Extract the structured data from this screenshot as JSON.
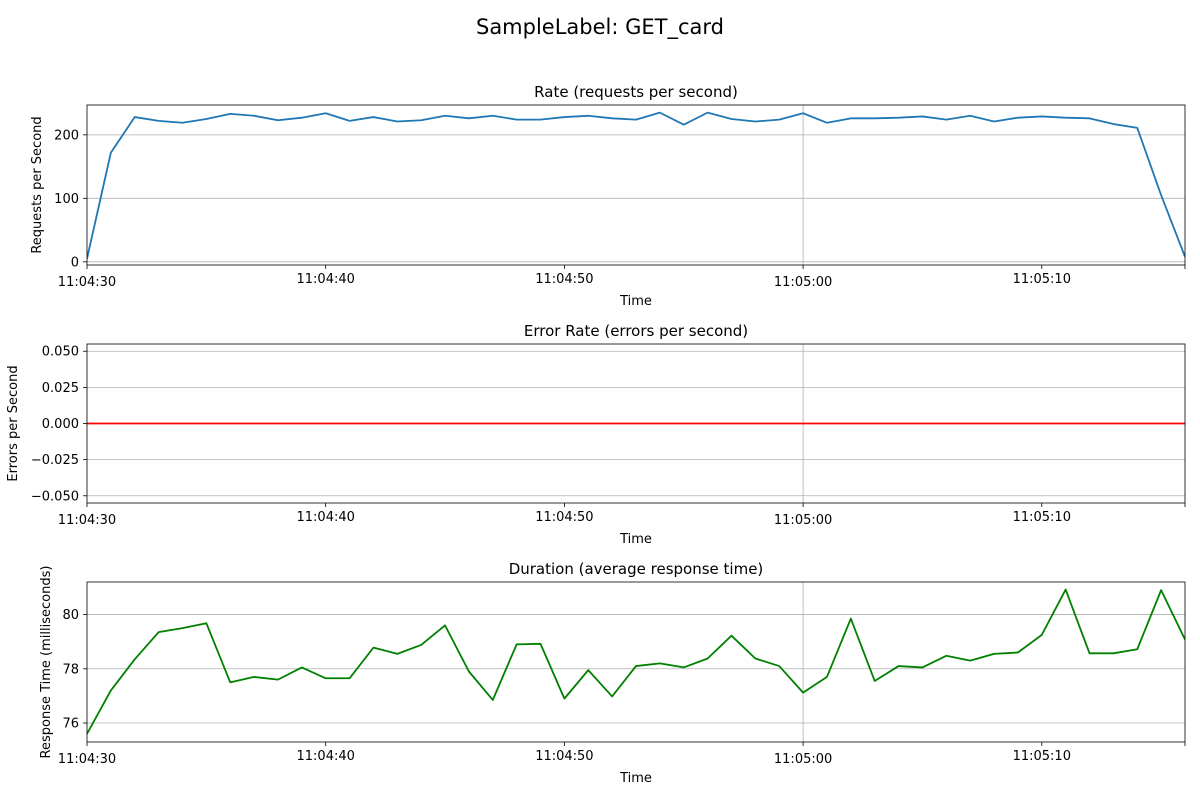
{
  "suptitle": "SampleLabel: GET_card",
  "chart_data": [
    {
      "type": "line",
      "title": "Rate (requests per second)",
      "xlabel": "Time",
      "ylabel": "Requests per Second",
      "x_ticks": [
        "11:04:30",
        "11:04:40",
        "11:04:50",
        "11:05:00",
        "11:05:10"
      ],
      "y_ticks": [
        "0",
        "100",
        "200"
      ],
      "xlim": [
        0,
        46
      ],
      "ylim": [
        -5,
        247
      ],
      "grid": true,
      "color": "#1f77b4",
      "x_start": "11:04:30",
      "x_step_seconds": 1,
      "values": [
        5,
        172,
        228,
        222,
        219,
        225,
        233,
        230,
        223,
        227,
        234,
        222,
        228,
        221,
        223,
        230,
        226,
        230,
        224,
        224,
        228,
        230,
        226,
        224,
        235,
        216,
        235,
        225,
        221,
        224,
        234,
        219,
        226,
        226,
        227,
        229,
        224,
        230,
        221,
        227,
        229,
        227,
        226,
        217,
        211,
        105,
        8
      ]
    },
    {
      "type": "line",
      "title": "Error Rate (errors per second)",
      "xlabel": "Time",
      "ylabel": "Errors per Second",
      "x_ticks": [
        "11:04:30",
        "11:04:40",
        "11:04:50",
        "11:05:00",
        "11:05:10"
      ],
      "y_ticks": [
        "−0.050",
        "−0.025",
        "0.000",
        "0.025",
        "0.050"
      ],
      "xlim": [
        0,
        46
      ],
      "ylim": [
        -0.055,
        0.055
      ],
      "grid": true,
      "color": "#ff0000",
      "x_start": "11:04:30",
      "x_step_seconds": 1,
      "values": [
        0,
        0,
        0,
        0,
        0,
        0,
        0,
        0,
        0,
        0,
        0,
        0,
        0,
        0,
        0,
        0,
        0,
        0,
        0,
        0,
        0,
        0,
        0,
        0,
        0,
        0,
        0,
        0,
        0,
        0,
        0,
        0,
        0,
        0,
        0,
        0,
        0,
        0,
        0,
        0,
        0,
        0,
        0,
        0,
        0,
        0,
        0
      ]
    },
    {
      "type": "line",
      "title": "Duration (average response time)",
      "xlabel": "Time",
      "ylabel": "Response Time (milliseconds)",
      "x_ticks": [
        "11:04:30",
        "11:04:40",
        "11:04:50",
        "11:05:00",
        "11:05:10"
      ],
      "y_ticks": [
        "76",
        "78",
        "80"
      ],
      "xlim": [
        0,
        46
      ],
      "ylim": [
        75.3,
        81.2
      ],
      "grid": true,
      "color": "#008000",
      "x_start": "11:04:30",
      "x_step_seconds": 1,
      "values": [
        75.6,
        77.2,
        78.35,
        79.35,
        79.5,
        79.68,
        77.5,
        77.7,
        77.6,
        78.05,
        77.65,
        77.65,
        78.78,
        78.55,
        78.88,
        79.6,
        77.9,
        76.85,
        78.9,
        78.92,
        76.9,
        77.95,
        76.98,
        78.1,
        78.2,
        78.05,
        78.38,
        79.22,
        78.38,
        78.1,
        77.12,
        77.7,
        79.85,
        77.55,
        78.1,
        78.05,
        78.48,
        78.3,
        78.55,
        78.6,
        79.25,
        80.92,
        78.57,
        78.57,
        78.72,
        80.9,
        79.08
      ]
    }
  ]
}
